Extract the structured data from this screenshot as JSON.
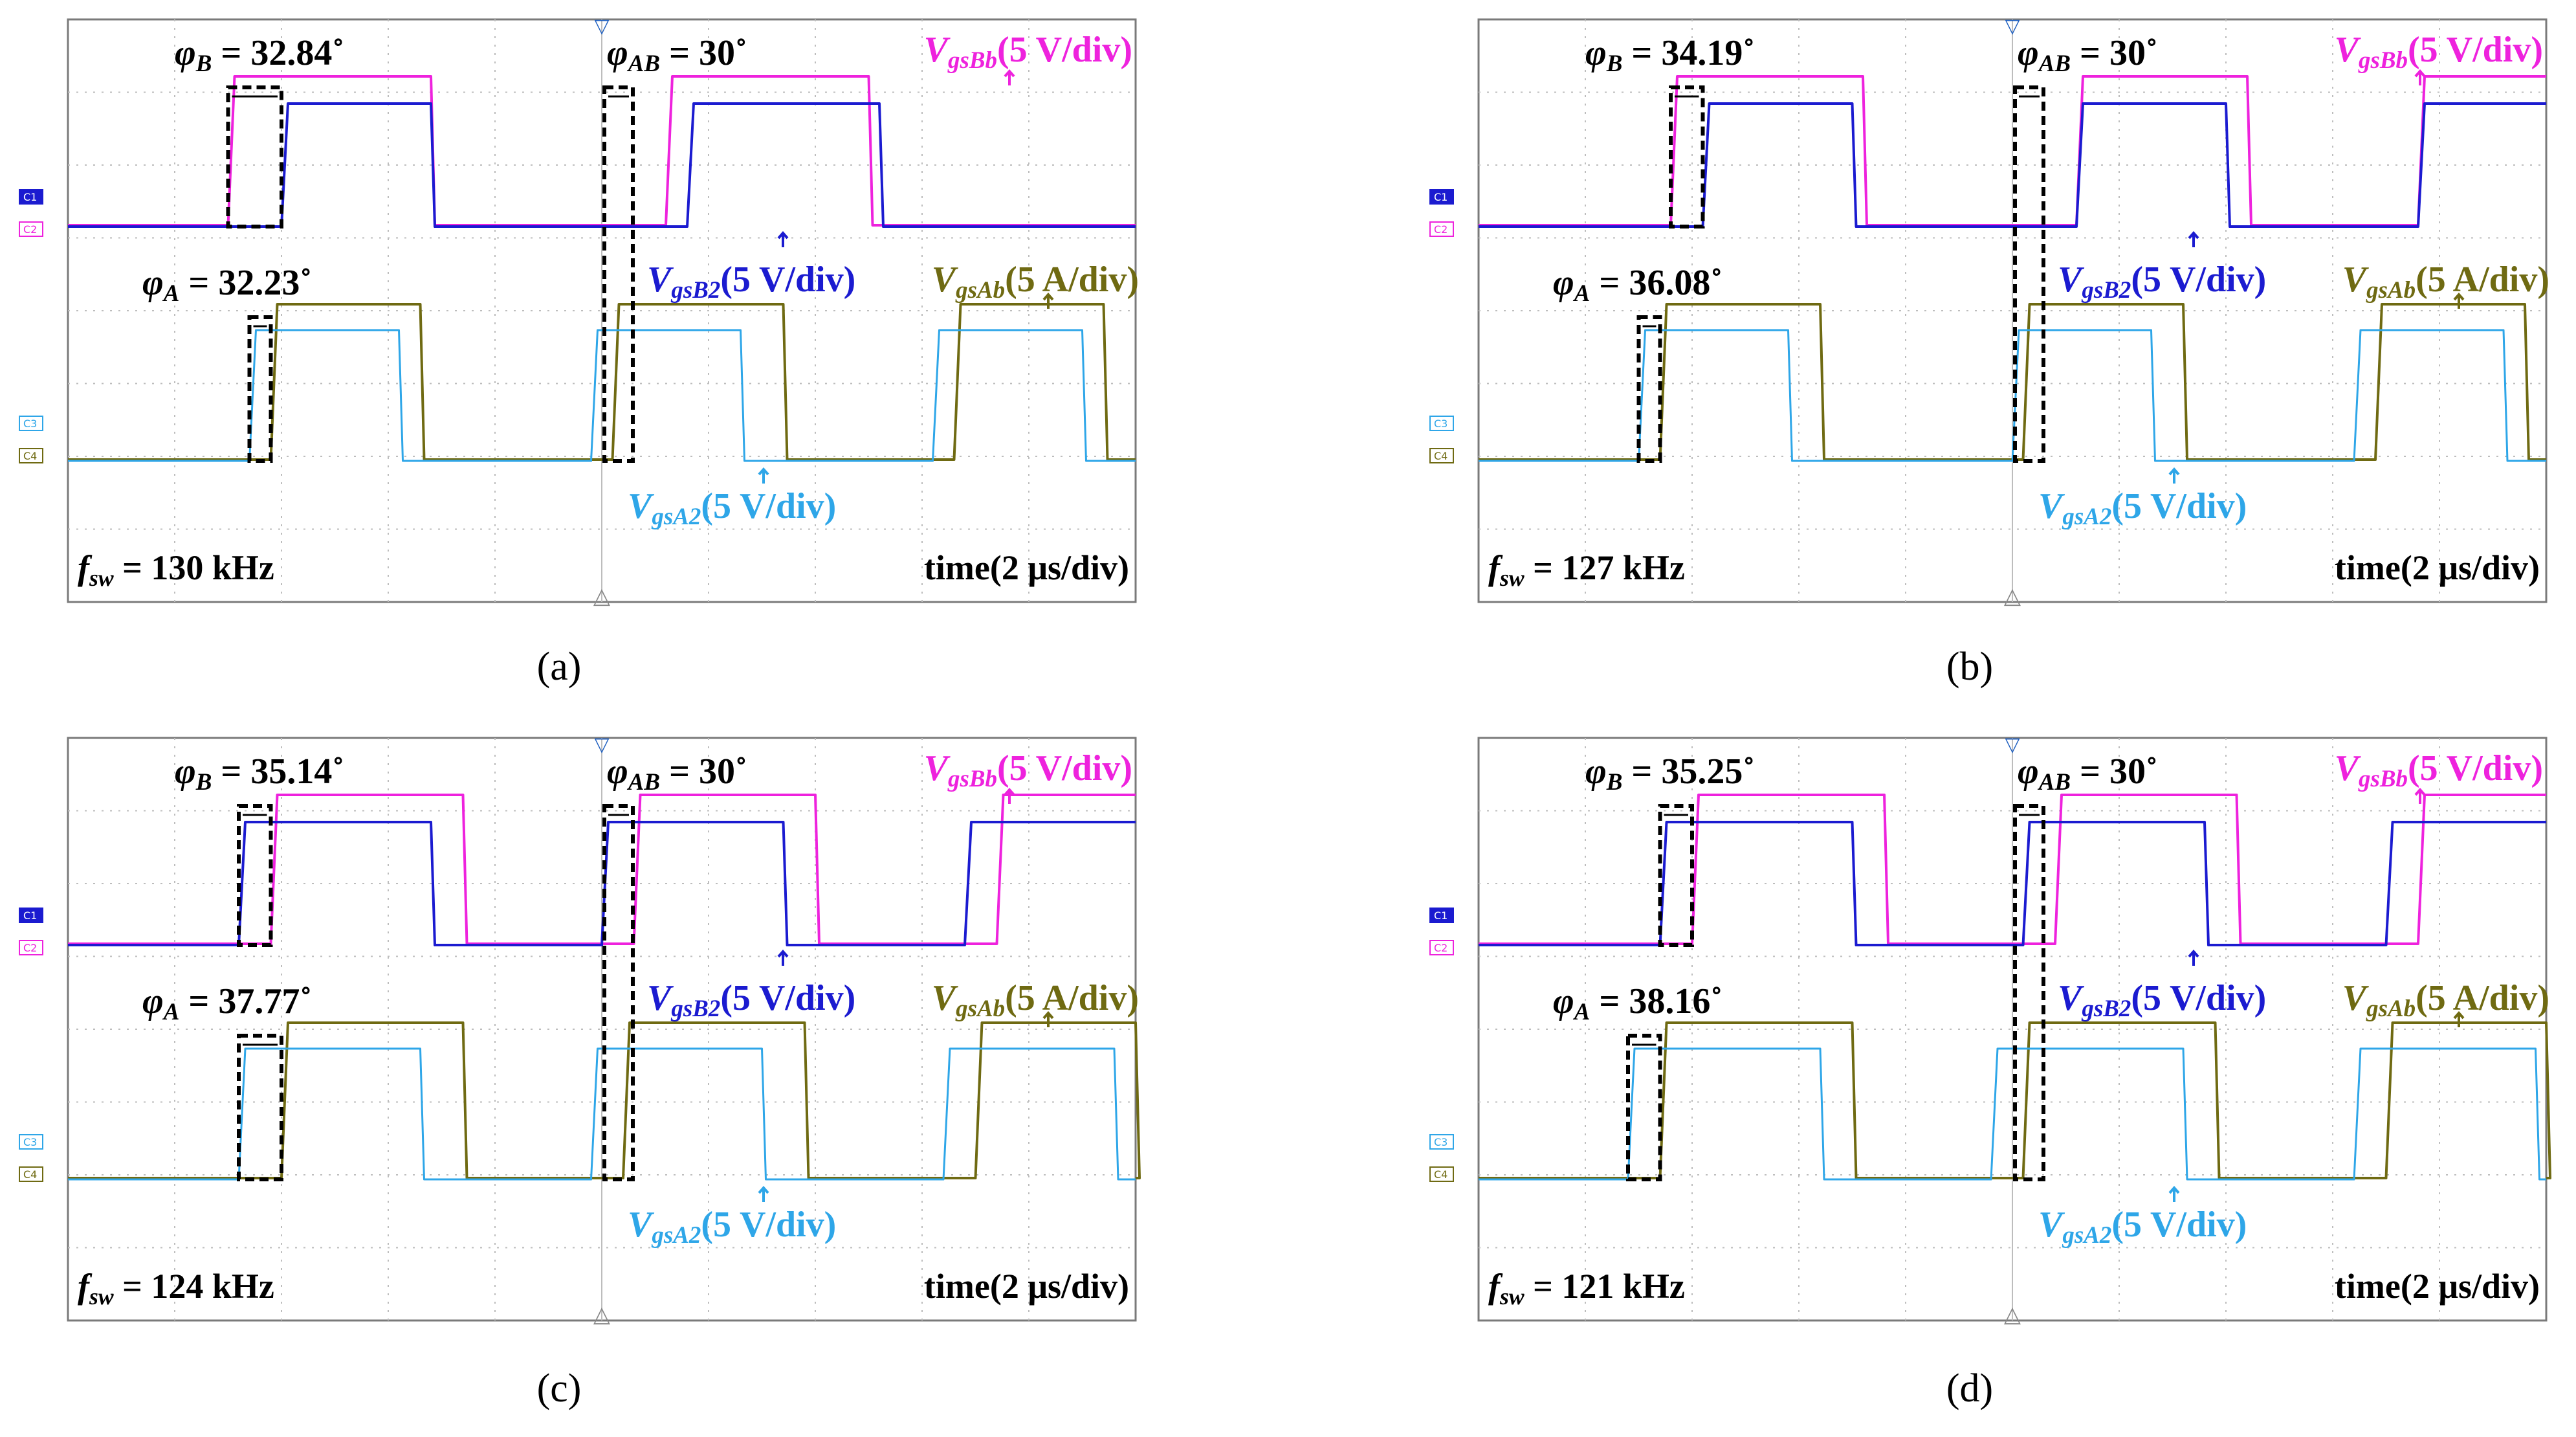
{
  "colors": {
    "vgsBb": "#ee22dd",
    "vgsB2": "#1b1bd0",
    "vgsAb": "#6f6a12",
    "vgsA2": "#2ea6e8",
    "grid": "#bdbdbd",
    "marker": "#000000"
  },
  "axis_marker": "▽",
  "chart_data": [
    {
      "type": "line",
      "panel": "(a)",
      "caption": "(a)",
      "fsw_prefix": "f",
      "fsw_sub": "sw",
      "fsw_text": " = 130 kHz",
      "fsw_kHz": 130,
      "time_label": "time(2 μs/div)",
      "phi_B": {
        "sym": "φ",
        "sub": "B",
        "text": " = 32.84˚",
        "deg": 32.84
      },
      "phi_AB": {
        "sym": "φ",
        "sub": "AB",
        "text": " = 30˚",
        "deg": 30
      },
      "phi_A": {
        "sym": "φ",
        "sub": "A",
        "text": " = 32.23˚",
        "deg": 32.23
      },
      "channel_tags": [
        "C1",
        "C2",
        "C3",
        "C4"
      ],
      "series": [
        {
          "name": "VgsBb",
          "prefix": "V",
          "sub": "gsBb",
          "label": "(5 V/div)",
          "scale": "5 V/div",
          "rise_div": [
            1.5,
            5.6
          ],
          "fall_div": [
            3.4,
            7.5
          ]
        },
        {
          "name": "VgsB2",
          "prefix": "V",
          "sub": "gsB2",
          "label": "(5 V/div)",
          "scale": "5 V/div",
          "rise_div": [
            2.0,
            5.8
          ],
          "fall_div": [
            3.4,
            7.6
          ]
        },
        {
          "name": "VgsAb",
          "prefix": "V",
          "sub": "gsAb",
          "label": "(5 A/div)",
          "scale": "5 A/div",
          "rise_div": [
            1.9,
            5.1,
            8.3
          ],
          "fall_div": [
            3.3,
            6.7,
            9.7
          ]
        },
        {
          "name": "VgsA2",
          "prefix": "V",
          "sub": "gsA2",
          "label": "(5 V/div)",
          "scale": "5 V/div",
          "rise_div": [
            1.7,
            4.9,
            8.1
          ],
          "fall_div": [
            3.1,
            6.3,
            9.5
          ]
        }
      ]
    },
    {
      "type": "line",
      "panel": "(b)",
      "caption": "(b)",
      "fsw_prefix": "f",
      "fsw_sub": "sw",
      "fsw_text": " = 127 kHz",
      "fsw_kHz": 127,
      "time_label": "time(2 μs/div)",
      "phi_B": {
        "sym": "φ",
        "sub": "B",
        "text": " = 34.19˚",
        "deg": 34.19
      },
      "phi_AB": {
        "sym": "φ",
        "sub": "AB",
        "text": " = 30˚",
        "deg": 30
      },
      "phi_A": {
        "sym": "φ",
        "sub": "A",
        "text": " = 36.08˚",
        "deg": 36.08
      },
      "channel_tags": [
        "C1",
        "C2",
        "C3",
        "C4"
      ],
      "series": [
        {
          "name": "VgsBb",
          "prefix": "V",
          "sub": "gsBb",
          "label": "(5 V/div)",
          "scale": "5 V/div",
          "rise_div": [
            1.8,
            5.6,
            8.8
          ],
          "fall_div": [
            3.6,
            7.2
          ]
        },
        {
          "name": "VgsB2",
          "prefix": "V",
          "sub": "gsB2",
          "label": "(5 V/div)",
          "scale": "5 V/div",
          "rise_div": [
            2.1,
            5.6,
            8.8
          ],
          "fall_div": [
            3.5,
            7.0
          ]
        },
        {
          "name": "VgsAb",
          "prefix": "V",
          "sub": "gsAb",
          "label": "(5 A/div)",
          "scale": "5 A/div",
          "rise_div": [
            1.7,
            5.1,
            8.4
          ],
          "fall_div": [
            3.2,
            6.6,
            9.8
          ]
        },
        {
          "name": "VgsA2",
          "prefix": "V",
          "sub": "gsA2",
          "label": "(5 V/div)",
          "scale": "5 V/div",
          "rise_div": [
            1.5,
            5.0,
            8.2
          ],
          "fall_div": [
            2.9,
            6.3,
            9.6
          ]
        }
      ]
    },
    {
      "type": "line",
      "panel": "(c)",
      "caption": "(c)",
      "fsw_prefix": "f",
      "fsw_sub": "sw",
      "fsw_text": " = 124 kHz",
      "fsw_kHz": 124,
      "time_label": "time(2 μs/div)",
      "phi_B": {
        "sym": "φ",
        "sub": "B",
        "text": " = 35.14˚",
        "deg": 35.14
      },
      "phi_AB": {
        "sym": "φ",
        "sub": "AB",
        "text": " = 30˚",
        "deg": 30
      },
      "phi_A": {
        "sym": "φ",
        "sub": "A",
        "text": " = 37.77˚",
        "deg": 37.77
      },
      "channel_tags": [
        "C1",
        "C2",
        "C3",
        "C4"
      ],
      "series": [
        {
          "name": "VgsBb",
          "prefix": "V",
          "sub": "gsBb",
          "label": "(5 V/div)",
          "scale": "5 V/div",
          "rise_div": [
            1.9,
            5.3,
            8.7
          ],
          "fall_div": [
            3.7,
            7.0
          ]
        },
        {
          "name": "VgsB2",
          "prefix": "V",
          "sub": "gsB2",
          "label": "(5 V/div)",
          "scale": "5 V/div",
          "rise_div": [
            1.6,
            5.0,
            8.4
          ],
          "fall_div": [
            3.4,
            6.7
          ]
        },
        {
          "name": "VgsAb",
          "prefix": "V",
          "sub": "gsAb",
          "label": "(5 A/div)",
          "scale": "5 A/div",
          "rise_div": [
            2.0,
            5.2,
            8.5
          ],
          "fall_div": [
            3.7,
            6.9,
            10.0
          ]
        },
        {
          "name": "VgsA2",
          "prefix": "V",
          "sub": "gsA2",
          "label": "(5 V/div)",
          "scale": "5 V/div",
          "rise_div": [
            1.6,
            4.9,
            8.2
          ],
          "fall_div": [
            3.3,
            6.5,
            9.8
          ]
        }
      ]
    },
    {
      "type": "line",
      "panel": "(d)",
      "caption": "(d)",
      "fsw_prefix": "f",
      "fsw_sub": "sw",
      "fsw_text": " = 121 kHz",
      "fsw_kHz": 121,
      "time_label": "time(2 μs/div)",
      "phi_B": {
        "sym": "φ",
        "sub": "B",
        "text": " = 35.25˚",
        "deg": 35.25
      },
      "phi_AB": {
        "sym": "φ",
        "sub": "AB",
        "text": " = 30˚",
        "deg": 30
      },
      "phi_A": {
        "sym": "φ",
        "sub": "A",
        "text": " = 38.16˚",
        "deg": 38.16
      },
      "channel_tags": [
        "C1",
        "C2",
        "C3",
        "C4"
      ],
      "series": [
        {
          "name": "VgsBb",
          "prefix": "V",
          "sub": "gsBb",
          "label": "(5 V/div)",
          "scale": "5 V/div",
          "rise_div": [
            2.0,
            5.4,
            8.8
          ],
          "fall_div": [
            3.8,
            7.1
          ]
        },
        {
          "name": "VgsB2",
          "prefix": "V",
          "sub": "gsB2",
          "label": "(5 V/div)",
          "scale": "5 V/div",
          "rise_div": [
            1.7,
            5.1,
            8.5
          ],
          "fall_div": [
            3.5,
            6.8
          ]
        },
        {
          "name": "VgsAb",
          "prefix": "V",
          "sub": "gsAb",
          "label": "(5 A/div)",
          "scale": "5 A/div",
          "rise_div": [
            1.7,
            5.1,
            8.5
          ],
          "fall_div": [
            3.5,
            6.9,
            10.0
          ]
        },
        {
          "name": "VgsA2",
          "prefix": "V",
          "sub": "gsA2",
          "label": "(5 V/div)",
          "scale": "5 V/div",
          "rise_div": [
            1.4,
            4.8,
            8.2
          ],
          "fall_div": [
            3.2,
            6.6,
            9.9
          ]
        }
      ]
    }
  ]
}
